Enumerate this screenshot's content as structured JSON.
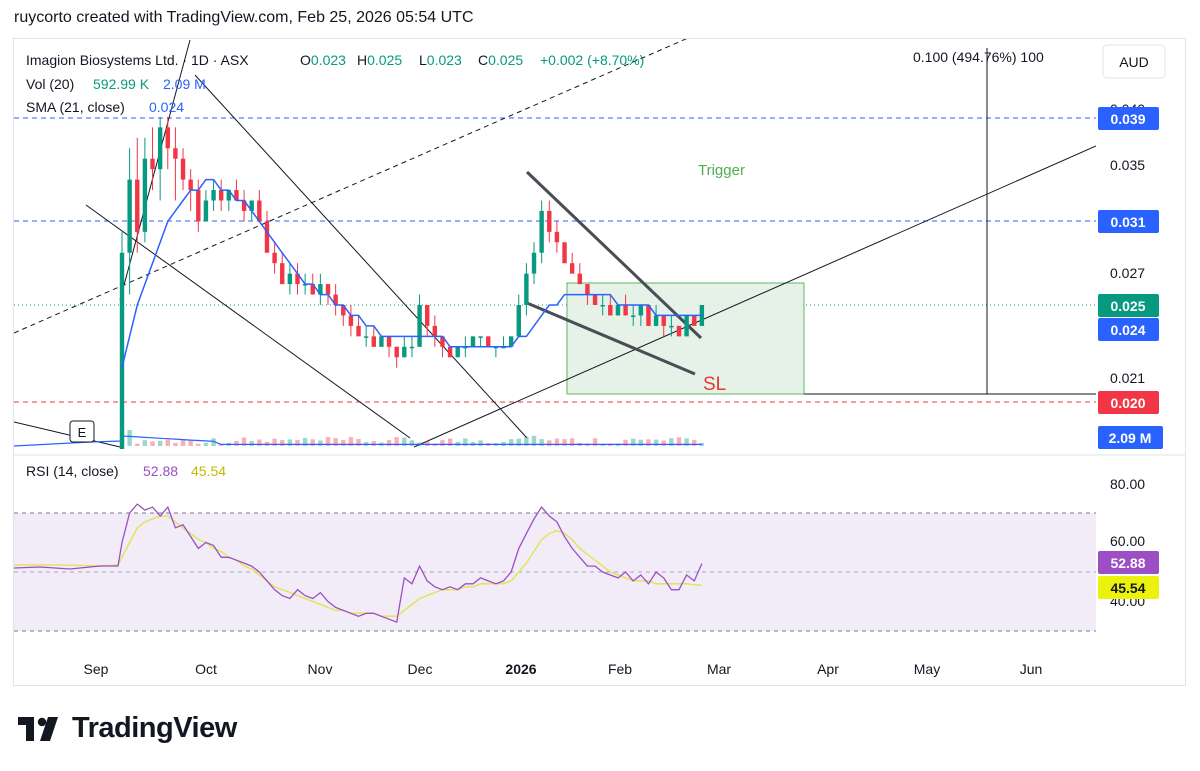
{
  "header": {
    "attribution": "ruycorto created with TradingView.com, Feb 25, 2026 05:54 UTC"
  },
  "legend": {
    "symbol": "Imagion Biosystems Ltd. · 1D · ASX",
    "o_label": "O",
    "o_value": "0.023",
    "h_label": "H",
    "h_value": "0.025",
    "l_label": "L",
    "l_value": "0.023",
    "c_label": "C",
    "c_value": "0.025",
    "change": "+0.002 (+8.70%)",
    "vol_label": "Vol (20)",
    "vol_value": "592.99 K",
    "vol_ma": "2.09 M",
    "sma_label": "SMA (21, close)",
    "sma_value": "0.024",
    "rsi_label": "RSI (14, close)",
    "rsi_value": "52.88",
    "rsi_ma": "45.54"
  },
  "currency_button": "AUD",
  "measure_label": "0.100 (494.76%) 100",
  "annotations": {
    "trigger": "Trigger",
    "stop_loss": "SL",
    "earnings_marker": "E"
  },
  "price_axis": {
    "ticks": [
      "0.035",
      "0.027",
      "0.021"
    ],
    "partial_tick": "0.040",
    "badges": [
      {
        "label": "0.039",
        "value": 0.039,
        "color": "#2962ff"
      },
      {
        "label": "0.031",
        "value": 0.031,
        "color": "#2962ff"
      },
      {
        "label": "0.025",
        "value": 0.025,
        "color": "#089981"
      },
      {
        "label": "0.024",
        "value": 0.024,
        "color": "#2962ff"
      },
      {
        "label": "0.020",
        "value": 0.02,
        "color": "#f23645"
      }
    ],
    "volume_badge": {
      "label": "2.09 M",
      "color": "#2962ff"
    }
  },
  "rsi_axis": {
    "ticks": [
      "80.00",
      "60.00",
      "40.00"
    ],
    "badges": [
      {
        "label": "52.88",
        "value": 52.88,
        "color": "#9c4fc4"
      },
      {
        "label": "45.54",
        "value": 45.54,
        "color": "#eaf20d"
      }
    ]
  },
  "time_axis": {
    "labels": [
      "Sep",
      "Oct",
      "Nov",
      "Dec",
      "2026",
      "Feb",
      "Mar",
      "Apr",
      "May",
      "Jun"
    ]
  },
  "colors": {
    "up": "#089981",
    "down": "#f23645",
    "sma": "#2962ff",
    "rsi": "#9c4fc4",
    "rsi_ma": "#dfe65a",
    "trigger": "#4caf50"
  },
  "chart_data": {
    "type": "candlestick",
    "symbol": "Imagion Biosystems Ltd.",
    "interval": "1D",
    "exchange": "ASX",
    "currency": "AUD",
    "ohlc_last": {
      "open": 0.023,
      "high": 0.025,
      "low": 0.023,
      "close": 0.025
    },
    "ohlc_daily": [
      [
        0.005,
        0.032,
        0.005,
        0.03
      ],
      [
        0.03,
        0.04,
        0.026,
        0.037
      ],
      [
        0.037,
        0.041,
        0.03,
        0.032
      ],
      [
        0.032,
        0.041,
        0.031,
        0.039
      ],
      [
        0.039,
        0.042,
        0.036,
        0.038
      ],
      [
        0.038,
        0.043,
        0.035,
        0.042
      ],
      [
        0.042,
        0.043,
        0.038,
        0.04
      ],
      [
        0.04,
        0.042,
        0.035,
        0.039
      ],
      [
        0.039,
        0.04,
        0.036,
        0.037
      ],
      [
        0.037,
        0.038,
        0.034,
        0.036
      ],
      [
        0.036,
        0.037,
        0.032,
        0.033
      ],
      [
        0.033,
        0.036,
        0.033,
        0.035
      ],
      [
        0.035,
        0.037,
        0.034,
        0.036
      ],
      [
        0.036,
        0.037,
        0.034,
        0.035
      ],
      [
        0.035,
        0.036,
        0.034,
        0.036
      ],
      [
        0.036,
        0.037,
        0.035,
        0.035
      ],
      [
        0.035,
        0.036,
        0.033,
        0.034
      ],
      [
        0.034,
        0.035,
        0.033,
        0.035
      ],
      [
        0.035,
        0.036,
        0.033,
        0.033
      ],
      [
        0.033,
        0.034,
        0.03,
        0.03
      ],
      [
        0.03,
        0.031,
        0.028,
        0.029
      ],
      [
        0.029,
        0.03,
        0.027,
        0.027
      ],
      [
        0.027,
        0.029,
        0.026,
        0.028
      ],
      [
        0.028,
        0.029,
        0.026,
        0.027
      ],
      [
        0.027,
        0.028,
        0.026,
        0.027
      ],
      [
        0.027,
        0.028,
        0.026,
        0.026
      ],
      [
        0.026,
        0.028,
        0.025,
        0.027
      ],
      [
        0.027,
        0.027,
        0.025,
        0.026
      ],
      [
        0.026,
        0.027,
        0.024,
        0.025
      ],
      [
        0.025,
        0.025,
        0.023,
        0.024
      ],
      [
        0.024,
        0.025,
        0.022,
        0.023
      ],
      [
        0.023,
        0.024,
        0.022,
        0.022
      ],
      [
        0.022,
        0.023,
        0.021,
        0.022
      ],
      [
        0.022,
        0.023,
        0.021,
        0.021
      ],
      [
        0.021,
        0.022,
        0.021,
        0.022
      ],
      [
        0.022,
        0.022,
        0.02,
        0.021
      ],
      [
        0.021,
        0.021,
        0.019,
        0.02
      ],
      [
        0.02,
        0.022,
        0.02,
        0.021
      ],
      [
        0.021,
        0.022,
        0.02,
        0.021
      ],
      [
        0.021,
        0.026,
        0.021,
        0.025
      ],
      [
        0.025,
        0.025,
        0.022,
        0.023
      ],
      [
        0.023,
        0.024,
        0.021,
        0.022
      ],
      [
        0.022,
        0.022,
        0.02,
        0.021
      ],
      [
        0.021,
        0.021,
        0.02,
        0.02
      ],
      [
        0.02,
        0.021,
        0.02,
        0.021
      ],
      [
        0.021,
        0.022,
        0.02,
        0.021
      ],
      [
        0.021,
        0.022,
        0.021,
        0.022
      ],
      [
        0.022,
        0.022,
        0.021,
        0.022
      ],
      [
        0.022,
        0.022,
        0.021,
        0.021
      ],
      [
        0.021,
        0.021,
        0.02,
        0.021
      ],
      [
        0.021,
        0.022,
        0.021,
        0.021
      ],
      [
        0.021,
        0.022,
        0.021,
        0.022
      ],
      [
        0.022,
        0.026,
        0.022,
        0.025
      ],
      [
        0.025,
        0.029,
        0.024,
        0.028
      ],
      [
        0.028,
        0.031,
        0.027,
        0.03
      ],
      [
        0.03,
        0.035,
        0.029,
        0.034
      ],
      [
        0.034,
        0.035,
        0.031,
        0.032
      ],
      [
        0.032,
        0.033,
        0.03,
        0.031
      ],
      [
        0.031,
        0.031,
        0.029,
        0.029
      ],
      [
        0.029,
        0.03,
        0.028,
        0.028
      ],
      [
        0.028,
        0.029,
        0.027,
        0.027
      ],
      [
        0.027,
        0.027,
        0.025,
        0.026
      ],
      [
        0.026,
        0.026,
        0.025,
        0.025
      ],
      [
        0.025,
        0.026,
        0.024,
        0.025
      ],
      [
        0.025,
        0.026,
        0.024,
        0.024
      ],
      [
        0.024,
        0.025,
        0.024,
        0.025
      ],
      [
        0.025,
        0.026,
        0.024,
        0.024
      ],
      [
        0.024,
        0.025,
        0.023,
        0.024
      ],
      [
        0.024,
        0.025,
        0.023,
        0.025
      ],
      [
        0.025,
        0.025,
        0.023,
        0.023
      ],
      [
        0.023,
        0.025,
        0.023,
        0.024
      ],
      [
        0.024,
        0.024,
        0.022,
        0.023
      ],
      [
        0.023,
        0.024,
        0.022,
        0.023
      ],
      [
        0.023,
        0.023,
        0.022,
        0.022
      ],
      [
        0.022,
        0.024,
        0.022,
        0.024
      ],
      [
        0.024,
        0.024,
        0.023,
        0.023
      ],
      [
        0.023,
        0.025,
        0.023,
        0.025
      ]
    ],
    "sma21": [
      0.019,
      0.022,
      0.025,
      0.027,
      0.029,
      0.031,
      0.033,
      0.034,
      0.035,
      0.036,
      0.036,
      0.037,
      0.037,
      0.036,
      0.036,
      0.035,
      0.035,
      0.034,
      0.033,
      0.032,
      0.031,
      0.03,
      0.029,
      0.028,
      0.027,
      0.027,
      0.026,
      0.026,
      0.025,
      0.025,
      0.024,
      0.024,
      0.023,
      0.023,
      0.022,
      0.022,
      0.022,
      0.022,
      0.022,
      0.022,
      0.022,
      0.022,
      0.022,
      0.021,
      0.021,
      0.021,
      0.021,
      0.021,
      0.021,
      0.021,
      0.021,
      0.021,
      0.022,
      0.022,
      0.023,
      0.024,
      0.025,
      0.025,
      0.026,
      0.026,
      0.026,
      0.026,
      0.026,
      0.026,
      0.026,
      0.025,
      0.025,
      0.025,
      0.025,
      0.025,
      0.024,
      0.024,
      0.024,
      0.024,
      0.024,
      0.024,
      0.024
    ],
    "volume": {
      "last": "592.99 K",
      "ma20": "2.09 M"
    },
    "rsi14": [
      60,
      70,
      73,
      71,
      72,
      69,
      72,
      65,
      66,
      62,
      58,
      60,
      59,
      55,
      55,
      54,
      53,
      52,
      50,
      47,
      44,
      42,
      41,
      44,
      42,
      41,
      43,
      40,
      38,
      37,
      36,
      35,
      36,
      36,
      35,
      34,
      33,
      48,
      46,
      52,
      47,
      45,
      44,
      45,
      44,
      46,
      46,
      48,
      47,
      46,
      47,
      50,
      58,
      63,
      68,
      72,
      69,
      67,
      62,
      58,
      55,
      52,
      52,
      50,
      49,
      48,
      50,
      47,
      49,
      46,
      50,
      48,
      44,
      44,
      49,
      47,
      52.88
    ],
    "rsi_ma": [
      55,
      60,
      65,
      67,
      68,
      69,
      69,
      67,
      65,
      63,
      61,
      60,
      58,
      57,
      55,
      54,
      52,
      51,
      49,
      47,
      45,
      44,
      43,
      42,
      41,
      40,
      39,
      38,
      37,
      37,
      36,
      36,
      36,
      36,
      35,
      35,
      35,
      37,
      39,
      41,
      42,
      43,
      44,
      44,
      44,
      45,
      45,
      46,
      46,
      46,
      46,
      47,
      50,
      53,
      57,
      61,
      63,
      64,
      63,
      61,
      58,
      56,
      54,
      52,
      50,
      49,
      48,
      47,
      47,
      47,
      46,
      46,
      46,
      46,
      46,
      45.7,
      45.54
    ],
    "rsi_levels": {
      "upper": 70,
      "middle": 50,
      "lower": 30
    },
    "price_levels": {
      "resistance_1": 0.039,
      "resistance_2": 0.031,
      "stop_loss": 0.02
    },
    "trigger_box": {
      "low": 0.02,
      "high": 0.026
    }
  }
}
